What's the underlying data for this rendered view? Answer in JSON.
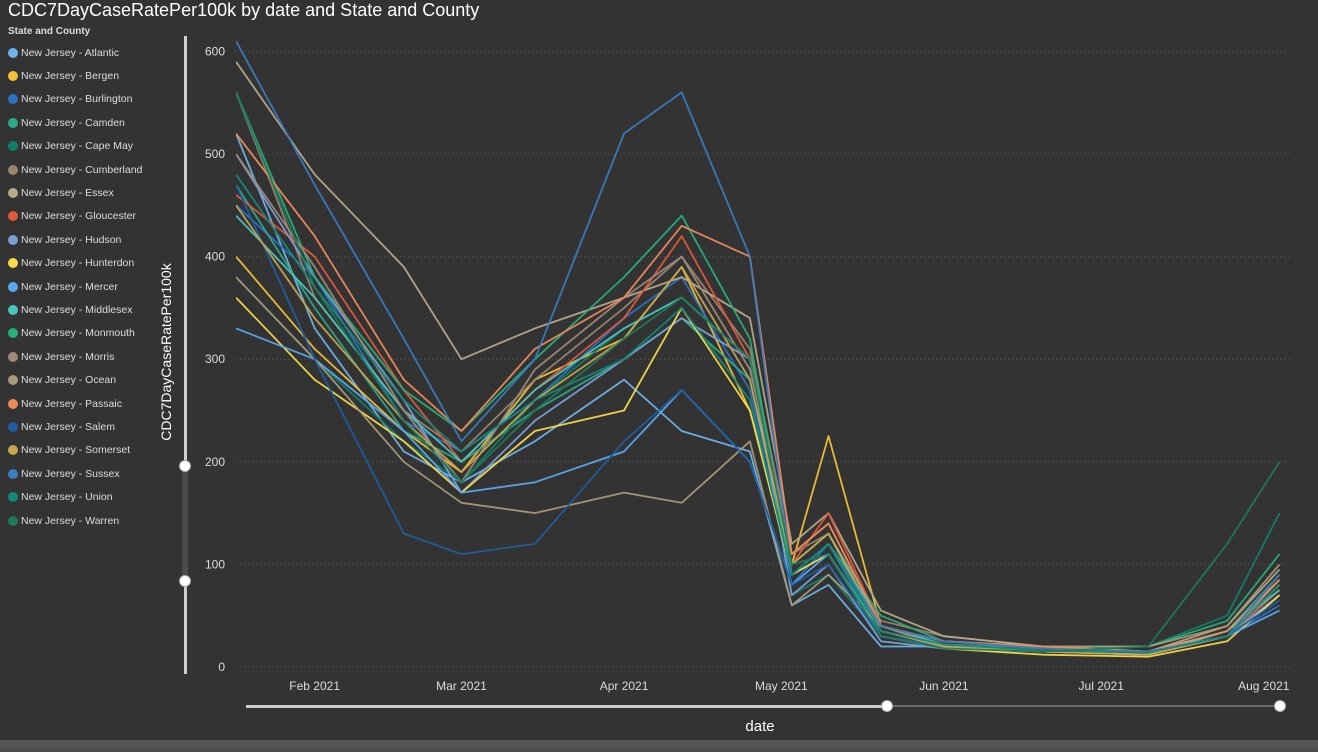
{
  "colors": {
    "background": "#333333",
    "text": "#ffffff",
    "muted_text": "#dddddd",
    "gridline": "#5a5a5a"
  },
  "chart_data": {
    "type": "line",
    "title": "CDC7DayCaseRatePer100k by date and State and County",
    "xlabel": "date",
    "ylabel": "CDC7DayCaseRatePer100k",
    "legend_title": "State and County",
    "legend_position": "left",
    "grid": "horizontal-dotted",
    "ylim": [
      0,
      615
    ],
    "xlim": [
      "2021-01-17",
      "2021-08-06"
    ],
    "y_ticks": [
      0,
      100,
      200,
      300,
      400,
      500,
      600
    ],
    "x_ticks": [
      {
        "label": "Feb 2021",
        "date": "2021-02-01"
      },
      {
        "label": "Mar 2021",
        "date": "2021-03-01"
      },
      {
        "label": "Apr 2021",
        "date": "2021-04-01"
      },
      {
        "label": "May 2021",
        "date": "2021-05-01"
      },
      {
        "label": "Jun 2021",
        "date": "2021-06-01"
      },
      {
        "label": "Jul 2021",
        "date": "2021-07-01"
      },
      {
        "label": "Aug 2021",
        "date": "2021-08-01"
      }
    ],
    "key_dates": [
      "2021-01-17",
      "2021-02-01",
      "2021-02-18",
      "2021-03-01",
      "2021-03-15",
      "2021-04-01",
      "2021-04-12",
      "2021-04-25",
      "2021-05-03",
      "2021-05-10",
      "2021-05-20",
      "2021-06-01",
      "2021-06-20",
      "2021-07-10",
      "2021-07-25",
      "2021-08-04"
    ],
    "y_slider": {
      "low": 84,
      "high": 196
    },
    "x_slider": {
      "low_fraction": 0.0,
      "high_fraction": 0.62
    },
    "series": [
      {
        "name": "New Jersey - Atlantic",
        "color": "#6fb3ea",
        "values": [
          520,
          330,
          210,
          180,
          220,
          280,
          230,
          210,
          60,
          80,
          20,
          20,
          15,
          15,
          30,
          70
        ]
      },
      {
        "name": "New Jersey - Bergen",
        "color": "#f2c037",
        "values": [
          400,
          310,
          230,
          190,
          280,
          320,
          390,
          250,
          100,
          225,
          40,
          20,
          15,
          12,
          35,
          85
        ]
      },
      {
        "name": "New Jersey - Burlington",
        "color": "#2a73c4",
        "values": [
          450,
          380,
          240,
          210,
          260,
          340,
          380,
          270,
          80,
          120,
          30,
          20,
          15,
          15,
          30,
          60
        ]
      },
      {
        "name": "New Jersey - Camden",
        "color": "#2aaa8a",
        "values": [
          470,
          350,
          230,
          200,
          250,
          300,
          340,
          280,
          90,
          110,
          35,
          22,
          18,
          15,
          35,
          90
        ]
      },
      {
        "name": "New Jersey - Cape May",
        "color": "#127e6c",
        "values": [
          380,
          300,
          220,
          180,
          260,
          330,
          360,
          300,
          70,
          90,
          30,
          20,
          18,
          20,
          50,
          150
        ]
      },
      {
        "name": "New Jersey - Cumberland",
        "color": "#9a8470",
        "values": [
          560,
          360,
          250,
          210,
          280,
          350,
          400,
          310,
          110,
          130,
          45,
          30,
          20,
          15,
          30,
          80
        ]
      },
      {
        "name": "New Jersey - Essex",
        "color": "#b5aa8a",
        "values": [
          590,
          480,
          390,
          300,
          330,
          360,
          380,
          340,
          120,
          150,
          55,
          30,
          20,
          15,
          40,
          95
        ]
      },
      {
        "name": "New Jersey - Gloucester",
        "color": "#e05a3a",
        "values": [
          460,
          400,
          270,
          200,
          270,
          340,
          420,
          300,
          100,
          150,
          40,
          25,
          18,
          15,
          30,
          75
        ]
      },
      {
        "name": "New Jersey - Hudson",
        "color": "#7c9fd6",
        "values": [
          500,
          380,
          260,
          170,
          240,
          300,
          340,
          300,
          70,
          100,
          25,
          18,
          15,
          12,
          30,
          80
        ]
      },
      {
        "name": "New Jersey - Hunterdon",
        "color": "#f7d94c",
        "values": [
          360,
          280,
          220,
          170,
          230,
          250,
          350,
          250,
          90,
          110,
          30,
          18,
          12,
          10,
          25,
          70
        ]
      },
      {
        "name": "New Jersey - Mercer",
        "color": "#5aa9f0",
        "values": [
          330,
          300,
          230,
          170,
          180,
          210,
          270,
          200,
          80,
          110,
          30,
          20,
          15,
          15,
          30,
          55
        ]
      },
      {
        "name": "New Jersey - Middlesex",
        "color": "#4ac6c0",
        "values": [
          440,
          360,
          250,
          200,
          270,
          330,
          360,
          300,
          100,
          130,
          40,
          22,
          15,
          12,
          35,
          75
        ]
      },
      {
        "name": "New Jersey - Monmouth",
        "color": "#26b07a",
        "values": [
          560,
          380,
          270,
          230,
          300,
          380,
          440,
          320,
          90,
          120,
          50,
          25,
          20,
          20,
          45,
          110
        ]
      },
      {
        "name": "New Jersey - Morris",
        "color": "#a08878",
        "values": [
          500,
          390,
          250,
          180,
          290,
          360,
          400,
          290,
          110,
          140,
          40,
          20,
          15,
          12,
          30,
          85
        ]
      },
      {
        "name": "New Jersey - Ocean",
        "color": "#a89a78",
        "values": [
          380,
          300,
          200,
          160,
          150,
          170,
          160,
          220,
          60,
          90,
          40,
          25,
          20,
          20,
          40,
          100
        ]
      },
      {
        "name": "New Jersey - Passaic",
        "color": "#f08a5a",
        "values": [
          520,
          420,
          280,
          230,
          310,
          360,
          430,
          400,
          110,
          140,
          40,
          25,
          20,
          15,
          35,
          85
        ]
      },
      {
        "name": "New Jersey - Salem",
        "color": "#1f5ea0",
        "values": [
          470,
          300,
          130,
          110,
          120,
          220,
          270,
          200,
          80,
          100,
          30,
          20,
          15,
          15,
          30,
          65
        ]
      },
      {
        "name": "New Jersey - Somerset",
        "color": "#c7a650",
        "values": [
          450,
          340,
          240,
          190,
          260,
          320,
          390,
          280,
          100,
          130,
          35,
          20,
          15,
          12,
          30,
          80
        ]
      },
      {
        "name": "New Jersey - Sussex",
        "color": "#3a7cc0",
        "values": [
          610,
          470,
          320,
          220,
          300,
          520,
          560,
          400,
          90,
          120,
          40,
          25,
          18,
          15,
          30,
          90
        ]
      },
      {
        "name": "New Jersey - Union",
        "color": "#14887a",
        "values": [
          480,
          370,
          260,
          210,
          260,
          300,
          350,
          260,
          90,
          120,
          35,
          22,
          16,
          14,
          30,
          80
        ]
      },
      {
        "name": "New Jersey - Warren",
        "color": "#1e7a5a",
        "values": [
          560,
          370,
          240,
          180,
          250,
          320,
          360,
          300,
          100,
          110,
          30,
          18,
          15,
          20,
          120,
          200
        ]
      }
    ]
  }
}
